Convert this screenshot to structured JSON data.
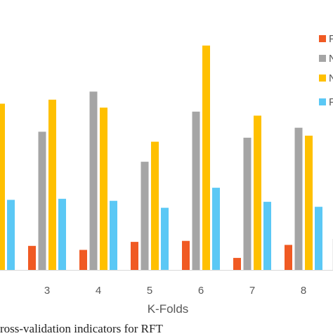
{
  "chart_data": {
    "type": "bar",
    "xlabel": "K-Folds",
    "categories": [
      "",
      "3",
      "4",
      "5",
      "6",
      "7",
      "8"
    ],
    "series": [
      {
        "name": "F",
        "color": "#f05a23",
        "values": [
          null,
          0.12,
          0.1,
          0.14,
          0.145,
          0.06,
          0.125
        ]
      },
      {
        "name": "N",
        "color": "#a5a5a5",
        "values": [
          null,
          0.69,
          0.89,
          0.54,
          0.79,
          0.66,
          0.71
        ]
      },
      {
        "name": "N",
        "color": "#ffc000",
        "values": [
          0.83,
          0.85,
          0.81,
          0.64,
          1.12,
          0.77,
          0.67
        ]
      },
      {
        "name": "F",
        "color": "#5bc8f5",
        "values": [
          0.35,
          0.355,
          0.345,
          0.31,
          0.41,
          0.34,
          0.315
        ]
      }
    ]
  },
  "caption": "ross-validation indicators for RFT"
}
